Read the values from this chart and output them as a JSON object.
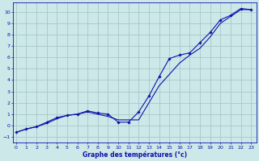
{
  "xlabel": "Graphe des températures (°c)",
  "bg_color": "#cce8e8",
  "grid_color": "#a8c8c8",
  "line_color": "#1010aa",
  "x_ticks": [
    0,
    1,
    2,
    3,
    4,
    5,
    6,
    7,
    8,
    9,
    10,
    11,
    12,
    13,
    14,
    15,
    16,
    17,
    18,
    19,
    20,
    21,
    22,
    23
  ],
  "ylim": [
    -1.5,
    10.8
  ],
  "xlim": [
    -0.3,
    23.5
  ],
  "yticks": [
    -1,
    0,
    1,
    2,
    3,
    4,
    5,
    6,
    7,
    8,
    9,
    10
  ],
  "series1_x": [
    0,
    1,
    2,
    3,
    4,
    5,
    6,
    7,
    8,
    9,
    10,
    11,
    12,
    13,
    14,
    15,
    16,
    17,
    18,
    19,
    20,
    21,
    22,
    23
  ],
  "series1_y": [
    -0.6,
    -0.3,
    -0.1,
    0.2,
    0.6,
    0.9,
    1.0,
    1.2,
    1.0,
    0.8,
    0.5,
    0.5,
    0.5,
    2.0,
    3.5,
    4.5,
    5.5,
    6.2,
    6.8,
    7.8,
    9.0,
    9.6,
    10.2,
    10.2
  ],
  "series2_x": [
    0,
    1,
    2,
    3,
    4,
    5,
    6,
    7,
    8,
    9,
    10,
    11,
    12,
    13,
    14,
    15,
    16,
    17,
    18,
    19,
    20,
    21,
    22,
    23
  ],
  "series2_y": [
    -0.6,
    -0.3,
    -0.1,
    0.3,
    0.7,
    0.9,
    1.0,
    1.3,
    1.1,
    1.0,
    0.3,
    0.3,
    1.2,
    2.6,
    4.3,
    5.9,
    6.2,
    6.4,
    7.3,
    8.2,
    9.3,
    9.7,
    10.3,
    10.2
  ]
}
